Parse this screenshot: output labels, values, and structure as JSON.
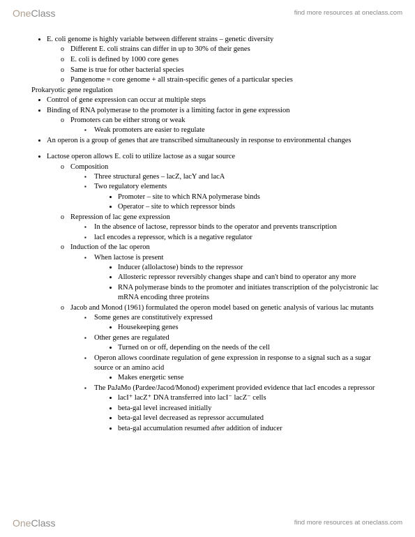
{
  "brand": {
    "part1": "One",
    "part2": "Class",
    "tagline": "find more resources at oneclass.com"
  },
  "notes": {
    "s1": {
      "i1": "E. coli genome is highly variable between different strains – genetic diversity",
      "c1": "Different E. coli strains can differ in up to 30% of their genes",
      "c2": "E. coli is defined by 1000 core genes",
      "c3": "Same is true for other bacterial species",
      "c4": "Pangenome = core genome + all strain-specific genes of a particular species"
    },
    "heading": "Prokaryotic gene regulation",
    "s2": {
      "i1": "Control of gene expression can occur at multiple steps",
      "i2": "Binding of RNA polymerase to the promoter is a limiting factor in gene expression",
      "i2c1": "Promoters can be either strong or weak",
      "i2c1a": "Weak promoters are easier to regulate",
      "i3": "An operon is a group of genes that are transcribed simultaneously in response to environmental changes"
    },
    "s3": {
      "i1": "Lactose operon allows E. coli to utilize lactose as a sugar source",
      "comp": {
        "t": "Composition",
        "a": "Three structural genes – lacZ, lacY and lacA",
        "b": "Two regulatory elements",
        "b1": "Promoter – site to which RNA polymerase binds",
        "b2": "Operator – site to which repressor binds"
      },
      "rep": {
        "t": "Repression of lac gene expression",
        "a": "In the absence of lactose, repressor binds to the operator and prevents transcription",
        "b": "lacI encodes a repressor, which is a negative regulator"
      },
      "ind": {
        "t": "Induction of the lac operon",
        "a": "When lactose is present",
        "a1": "Inducer (allolactose) binds to the repressor",
        "a2": "Allosteric repressor reversibly changes shape and can't bind to operator any more",
        "a3": "RNA polymerase binds to the promoter and initiates transcription of the polycistronic lac mRNA encoding three proteins"
      },
      "jm": {
        "t": "Jacob and Monod (1961) formulated the operon model based on genetic analysis of various lac mutants",
        "a": "Some genes are constitutively expressed",
        "a1": "Housekeeping genes",
        "b": "Other genes are regulated",
        "b1": "Turned on or off, depending on the needs of the cell",
        "c": "Operon allows coordinate regulation of gene expression in response to a signal such as a sugar source or an amino acid",
        "c1": "Makes energetic sense",
        "d": "The PaJaMo (Pardee/Jacod/Monod) experiment provided evidence that lacI encodes a repressor",
        "d1": "lacI⁺ lacZ⁺ DNA transferred into lacI⁻ lacZ⁻ cells",
        "d2": "beta-gal level increased initially",
        "d3": "beta-gal level decreased as repressor accumulated",
        "d4": "beta-gal accumulation resumed after addition of inducer"
      }
    }
  }
}
